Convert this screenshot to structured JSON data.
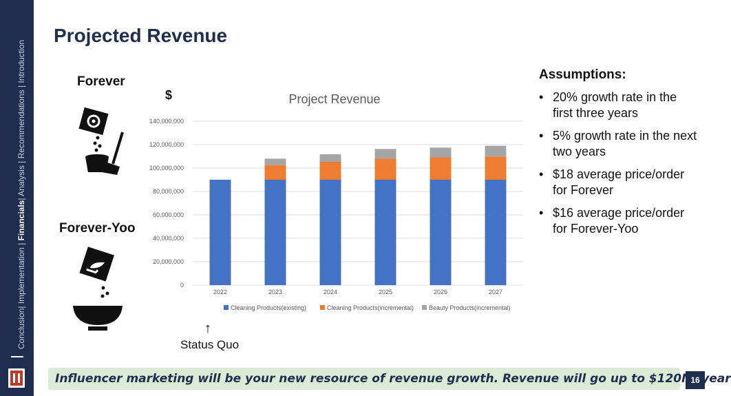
{
  "sidebar": {
    "nav_items": [
      "Conclusion",
      "Implementation",
      "Financials",
      "Analysis",
      "Recommendations",
      "Introduction"
    ],
    "active_item": "Financials",
    "nav_text_pre": "Conclusion| Implementation | ",
    "nav_text_active": "Financials",
    "nav_text_post": "| Analysis | Recommendations | Introduction"
  },
  "page": {
    "title": "Projected Revenue",
    "number": "16"
  },
  "brands": {
    "forever": "Forever",
    "forever_yoo": "Forever-Yoo"
  },
  "chart_note": {
    "currency_symbol": "$",
    "status_arrow": "↑",
    "status_label": "Status Quo"
  },
  "assumptions": {
    "title": "Assumptions:",
    "bullet_symbol": "•",
    "items": [
      "20% growth rate in the first three years",
      "5% growth rate in the next two years",
      "$18 average price/order for Forever",
      "$16 average price/order for Forever-Yoo"
    ]
  },
  "banner": {
    "text": "Influencer marketing will be your new resource of revenue growth. Revenue will go up to $120M/ year",
    "background": "#dcebd6"
  },
  "colors": {
    "navy": "#1f2d4f"
  },
  "chart_data": {
    "type": "bar",
    "stacked": true,
    "title": "Project Revenue",
    "categories": [
      "2022",
      "2023",
      "2024",
      "2025",
      "2026",
      "2027"
    ],
    "series": [
      {
        "name": "Cleaning Products(existing)",
        "color": "#4472c4",
        "values": [
          90000000,
          90000000,
          90000000,
          90000000,
          90000000,
          90000000
        ]
      },
      {
        "name": "Cleaning Products(incremental)",
        "color": "#ed7d31",
        "values": [
          0,
          12500000,
          15300000,
          18000000,
          19100000,
          19800000
        ]
      },
      {
        "name": "Beauty Products(incremental)",
        "color": "#a5a5a5",
        "values": [
          0,
          5500000,
          6500000,
          8300000,
          8300000,
          9200000
        ]
      }
    ],
    "ylim": [
      0,
      140000000
    ],
    "yticks": [
      "0",
      "20,000,000",
      "40,000,000",
      "60,000,000",
      "80,000,000",
      "100,000,000",
      "120,000,000",
      "140,000,000"
    ],
    "grid": true,
    "legend_position": "bottom"
  }
}
